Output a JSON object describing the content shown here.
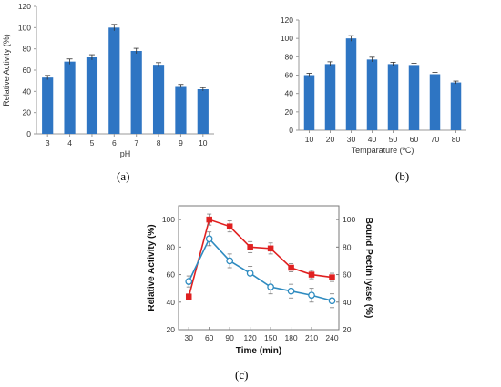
{
  "panels": [
    {
      "label": "(a)"
    },
    {
      "label": "(b)"
    },
    {
      "label": "(c)"
    }
  ],
  "chart_data": [
    {
      "type": "bar",
      "title": "",
      "xlabel": "pH",
      "ylabel": "Relative Activity (%)",
      "categories": [
        "3",
        "4",
        "5",
        "6",
        "7",
        "8",
        "9",
        "10"
      ],
      "values": [
        53,
        68,
        72,
        100,
        78,
        65,
        45,
        42
      ],
      "errors": [
        2,
        2.5,
        2.5,
        3,
        2.5,
        2,
        1.5,
        1.5
      ],
      "ylim": [
        0,
        120
      ],
      "yticks": [
        0,
        20,
        40,
        60,
        80,
        100,
        120
      ],
      "grid": false,
      "color": "#2e75c3"
    },
    {
      "type": "bar",
      "title": "",
      "xlabel": "Temparature (ºC)",
      "ylabel": "",
      "categories": [
        "10",
        "20",
        "30",
        "40",
        "50",
        "60",
        "70",
        "80"
      ],
      "values": [
        60,
        72,
        100,
        77,
        72,
        71,
        61,
        52
      ],
      "errors": [
        2,
        2.5,
        3,
        2.5,
        2,
        2,
        2,
        1.5
      ],
      "ylim": [
        0,
        120
      ],
      "yticks": [
        0,
        20,
        40,
        60,
        80,
        100,
        120
      ],
      "grid": false,
      "color": "#2e75c3"
    },
    {
      "type": "line",
      "title": "",
      "xlabel": "Time (min)",
      "ylabel": "Relative Activity (%)",
      "y2label": "Bound Pectin lyase (%)",
      "x": [
        30,
        60,
        90,
        120,
        150,
        180,
        210,
        240
      ],
      "xlim": [
        15,
        250
      ],
      "ylim": [
        20,
        110
      ],
      "yticks": [
        20,
        40,
        60,
        80,
        100
      ],
      "y2ticks": [
        20,
        40,
        60,
        80,
        100
      ],
      "grid": false,
      "series": [
        {
          "values": [
            44,
            100,
            95,
            80,
            79,
            65,
            60,
            58
          ],
          "errors": [
            2,
            4,
            4,
            4,
            4,
            3,
            3,
            3
          ],
          "color": "#e02020",
          "marker": "filled-square"
        },
        {
          "values": [
            55,
            86,
            70,
            61,
            51,
            48,
            45,
            41
          ],
          "errors": [
            4,
            5,
            5,
            5,
            5,
            5,
            5,
            5
          ],
          "color": "#2e8bc0",
          "marker": "open-circle"
        }
      ]
    }
  ]
}
